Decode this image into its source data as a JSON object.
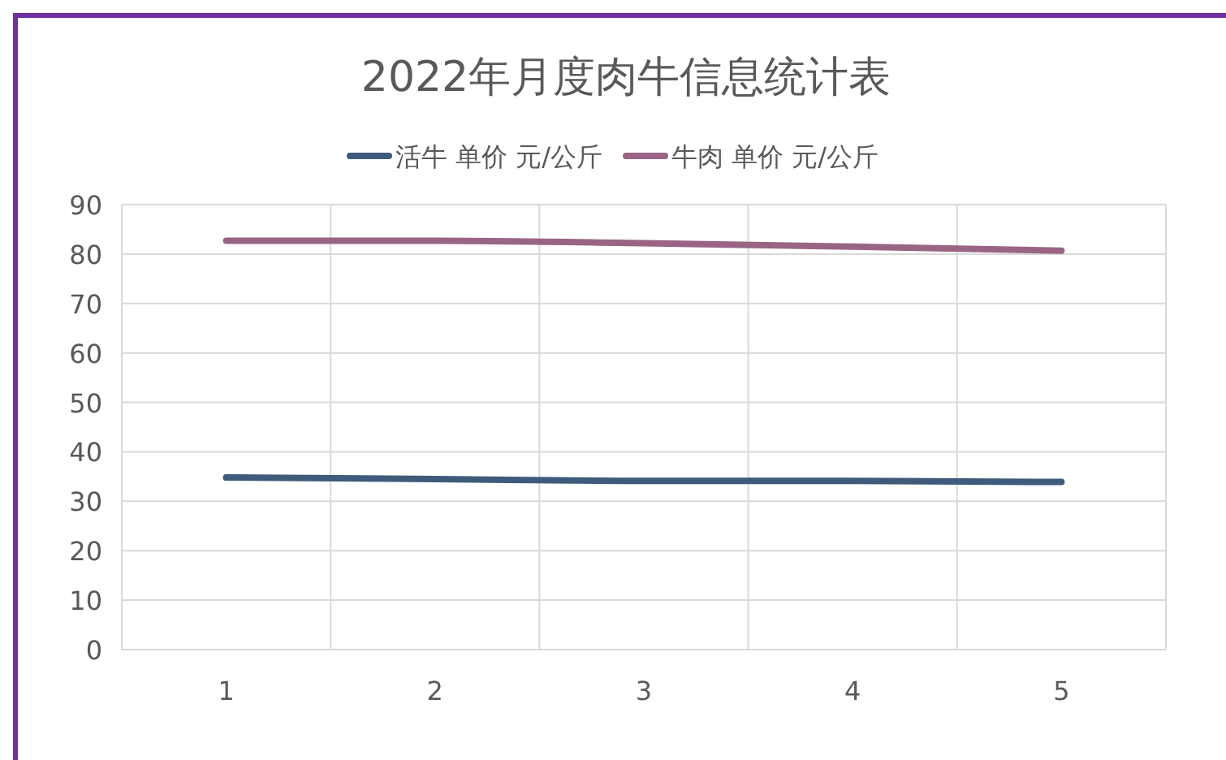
{
  "chart_data": {
    "type": "line",
    "title": "2022年月度肉牛信息统计表",
    "categories": [
      "1",
      "2",
      "3",
      "4",
      "5"
    ],
    "series": [
      {
        "name": "活牛 单价 元/公斤",
        "color": "#3e5b7c",
        "values": [
          34.8,
          34.5,
          34.1,
          34.1,
          33.9
        ]
      },
      {
        "name": "牛肉 单价 元/公斤",
        "color": "#9a6585",
        "values": [
          82.7,
          82.7,
          82.2,
          81.5,
          80.7
        ]
      }
    ],
    "ylim": [
      0,
      90
    ],
    "yticks": [
      0,
      10,
      20,
      30,
      40,
      50,
      60,
      70,
      80,
      90
    ],
    "grid": true,
    "legend": "top",
    "marker": "none",
    "line_style": "solid"
  }
}
